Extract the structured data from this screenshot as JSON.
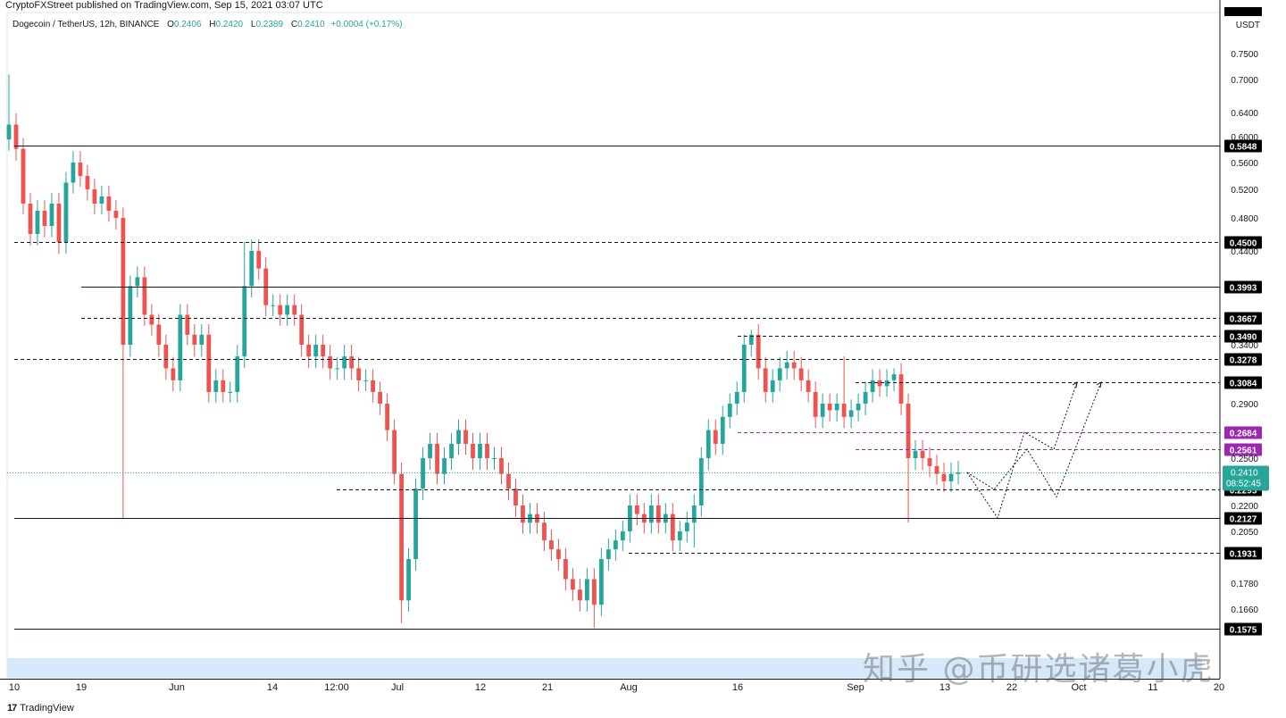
{
  "publisher_line": "CryptoFXStreet published on TradingView.com, Sep 15, 2021 03:07 UTC",
  "legend": {
    "symbol": "Dogecoin / TetherUS, 12h, BINANCE",
    "o_label": "O",
    "o_value": "0.2406",
    "h_label": "H",
    "h_value": "0.2420",
    "l_label": "L",
    "l_value": "0.2389",
    "c_label": "C",
    "c_value": "0.2410",
    "change": "+0.0004 (+0.17%)"
  },
  "brand": "TradingView",
  "watermark": "知乎 @币研选诸葛小虎",
  "chart_data": {
    "type": "candlestick",
    "price_axis_unit": "USDT",
    "y_ticks": [
      "0.7500",
      "0.7000",
      "0.6400",
      "0.6000",
      "0.5600",
      "0.5200",
      "0.4800",
      "0.4400",
      "0.3400",
      "0.2900",
      "0.2500",
      "0.2200",
      "0.2050",
      "0.1780",
      "0.1660"
    ],
    "x_ticks": [
      "10",
      "19",
      "Jun",
      "14",
      "12:00",
      "Jul",
      "12",
      "21",
      "Aug",
      "16",
      "Sep",
      "13",
      "22",
      "Oct",
      "11",
      "20"
    ],
    "current_price": {
      "value": "0.2410",
      "countdown": "08:52:45"
    },
    "levels": [
      {
        "value": 0.5848,
        "label": "0.5848",
        "style": "solid",
        "start": "10"
      },
      {
        "value": 0.45,
        "label": "0.4500",
        "style": "dashed",
        "start": "10"
      },
      {
        "value": 0.3993,
        "label": "0.3993",
        "style": "solid",
        "start": "19"
      },
      {
        "value": 0.3667,
        "label": "0.3667",
        "style": "dashed",
        "start": "19"
      },
      {
        "value": 0.349,
        "label": "0.3490",
        "style": "dashed",
        "start": "16"
      },
      {
        "value": 0.3278,
        "label": "0.3278",
        "style": "dashed",
        "start": "10"
      },
      {
        "value": 0.3084,
        "label": "0.3084",
        "style": "dashed",
        "start": "Sep"
      },
      {
        "value": 0.2684,
        "label": "0.2684",
        "style": "dashed-purple",
        "start": "16"
      },
      {
        "value": 0.2561,
        "label": "0.2561",
        "style": "dashed-purple",
        "start": "Sep"
      },
      {
        "value": 0.2295,
        "label": "0.2295",
        "style": "dashed",
        "start": "12:00"
      },
      {
        "value": 0.2127,
        "label": "0.2127",
        "style": "solid",
        "start": "10"
      },
      {
        "value": 0.1931,
        "label": "0.1931",
        "style": "dashed",
        "start": "Aug"
      },
      {
        "value": 0.1575,
        "label": "0.1575",
        "style": "solid",
        "start": "10"
      }
    ],
    "closes": [
      0.62,
      0.58,
      0.5,
      0.46,
      0.49,
      0.47,
      0.5,
      0.45,
      0.53,
      0.56,
      0.54,
      0.52,
      0.5,
      0.51,
      0.49,
      0.48,
      0.34,
      0.4,
      0.41,
      0.37,
      0.36,
      0.34,
      0.32,
      0.31,
      0.37,
      0.35,
      0.34,
      0.35,
      0.3,
      0.31,
      0.3,
      0.3,
      0.33,
      0.4,
      0.44,
      0.42,
      0.38,
      0.38,
      0.37,
      0.38,
      0.37,
      0.34,
      0.33,
      0.34,
      0.33,
      0.32,
      0.32,
      0.33,
      0.32,
      0.31,
      0.31,
      0.3,
      0.29,
      0.27,
      0.24,
      0.17,
      0.19,
      0.23,
      0.25,
      0.26,
      0.24,
      0.25,
      0.26,
      0.27,
      0.26,
      0.25,
      0.26,
      0.25,
      0.25,
      0.24,
      0.23,
      0.22,
      0.21,
      0.215,
      0.21,
      0.2,
      0.195,
      0.19,
      0.18,
      0.175,
      0.17,
      0.18,
      0.168,
      0.19,
      0.195,
      0.2,
      0.205,
      0.22,
      0.215,
      0.21,
      0.22,
      0.21,
      0.215,
      0.2,
      0.205,
      0.21,
      0.22,
      0.25,
      0.27,
      0.26,
      0.28,
      0.29,
      0.3,
      0.34,
      0.35,
      0.32,
      0.3,
      0.31,
      0.32,
      0.325,
      0.32,
      0.31,
      0.3,
      0.28,
      0.29,
      0.285,
      0.29,
      0.28,
      0.285,
      0.29,
      0.3,
      0.31,
      0.305,
      0.31,
      0.315,
      0.29,
      0.25,
      0.255,
      0.25,
      0.245,
      0.24,
      0.235,
      0.24,
      0.241
    ]
  }
}
